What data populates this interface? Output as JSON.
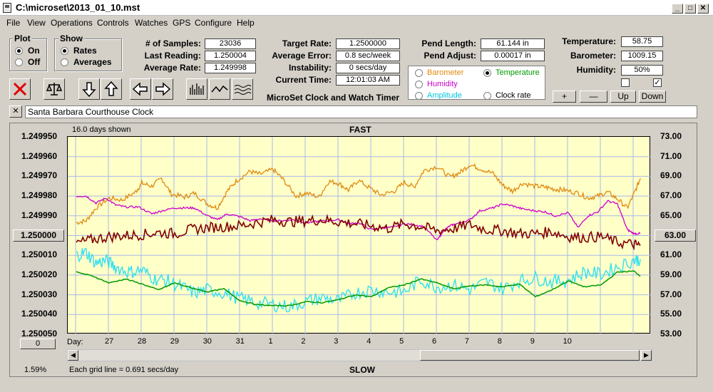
{
  "window": {
    "title": "C:\\microset\\2013_01_10.mst",
    "minimize": "_",
    "maximize": "□",
    "close": "✕"
  },
  "menu": [
    "File",
    "View",
    "Operations",
    "Controls",
    "Watches",
    "GPS",
    "Configure",
    "Help"
  ],
  "plot_group": {
    "title": "Plot",
    "options": [
      "On",
      "Off"
    ],
    "selected": "On"
  },
  "show_group": {
    "title": "Show",
    "options": [
      "Rates",
      "Averages"
    ],
    "selected": "Rates"
  },
  "stats": {
    "samples_label": "# of Samples:",
    "samples": "23036",
    "last_reading_label": "Last Reading:",
    "last_reading": "1.250004",
    "average_rate_label": "Average Rate:",
    "average_rate": "1.249998",
    "target_rate_label": "Target Rate:",
    "target_rate": "1.2500000",
    "average_error_label": "Average Error:",
    "average_error": "0.8 sec/week",
    "instability_label": "Instability:",
    "instability": "0 secs/day",
    "current_time_label": "Current Time:",
    "current_time": "12:01:03 AM",
    "app_caption": "MicroSet Clock and Watch Timer",
    "pend_length_label": "Pend Length:",
    "pend_length": "61.144 in",
    "pend_adjust_label": "Pend Adjust:",
    "pend_adjust": "0.00017 in",
    "temperature_label": "Temperature:",
    "temperature": "58.75",
    "barometer_label": "Barometer:",
    "barometer": "1009.15",
    "humidity_label": "Humidity:",
    "humidity": "50%"
  },
  "aux_select": {
    "options": [
      {
        "label": "Barometer",
        "color": "#e08a10"
      },
      {
        "label": "Temperature",
        "color": "#009900"
      },
      {
        "label": "Humidity",
        "color": "#cc00cc"
      },
      {
        "label": "Amplitude",
        "color": "#00c8e0"
      },
      {
        "label": "Clock rate",
        "color": "#000000"
      }
    ],
    "selected": "Temperature"
  },
  "aux_buttons": {
    "plus": "+",
    "minus": "—",
    "up": "Up",
    "down": "Down"
  },
  "checkboxes": [
    false,
    true
  ],
  "toolbar_icons": [
    "delete-icon",
    "balance-icon",
    "arrow-down-icon",
    "arrow-up-icon",
    "arrow-left-icon",
    "arrow-right-icon",
    "bar-graph-icon",
    "line-graph-icon",
    "wave-graph-icon"
  ],
  "clock_name": {
    "close": "✕",
    "value": "Santa Barbara Courthouse Clock"
  },
  "graph": {
    "days_shown": "16.0 days shown",
    "fast_label": "FAST",
    "slow_label": "SLOW",
    "left_center_button": "1.250000",
    "right_center_button": "63.00",
    "bottom_left_button": "0",
    "percent": "1.59%",
    "grid_note": "Each grid line = 0.691 secs/day",
    "day_label": "Day:"
  },
  "chart_data": {
    "type": "line",
    "title": "",
    "y_left_ticks": [
      "1.249950",
      "1.249960",
      "1.249970",
      "1.249980",
      "1.249990",
      "1.250000",
      "1.250010",
      "1.250020",
      "1.250030",
      "1.250040",
      "1.250050"
    ],
    "y_right_ticks": [
      "73.00",
      "71.00",
      "69.00",
      "67.00",
      "65.00",
      "63.00",
      "61.00",
      "59.00",
      "57.00",
      "55.00",
      "53.00"
    ],
    "x_ticks": [
      "27",
      "28",
      "29",
      "30",
      "31",
      "1",
      "2",
      "3",
      "4",
      "5",
      "6",
      "7",
      "8",
      "9",
      "10"
    ],
    "ylim_left": [
      1.25005,
      1.24995
    ],
    "ylim_right": [
      53,
      73
    ],
    "grid": true,
    "series": [
      {
        "name": "Barometer",
        "color": "#e08a10",
        "x": [
          0,
          0.3,
          0.6,
          1,
          1.4,
          1.8,
          2.0,
          2.3,
          2.6,
          2.9,
          3.3,
          3.6,
          4.0,
          4.3,
          4.6,
          4.9,
          5.3,
          5.6,
          6.0,
          6.3,
          6.7,
          7.0,
          7.4,
          7.7,
          8.0,
          8.3,
          8.6,
          9.0,
          9.3,
          9.7,
          10.0,
          10.3,
          10.6,
          11.0,
          11.4,
          11.7,
          12.0,
          12.3,
          12.7,
          13.0,
          13.3,
          13.6,
          14.0,
          14.3,
          14.6,
          14.9,
          15.3,
          15.6,
          15.9,
          16.2,
          16.5,
          16.8,
          17.0,
          17.2
        ],
        "y": [
          64.3,
          64.5,
          65.8,
          66.8,
          66.6,
          67.4,
          68.3,
          68.0,
          68.8,
          67.2,
          66.9,
          67.3,
          66.2,
          65.8,
          67.5,
          68.6,
          69.5,
          69.2,
          69.7,
          68.7,
          67.0,
          67.3,
          66.9,
          68.5,
          68.3,
          67.6,
          68.6,
          67.7,
          67.1,
          67.5,
          68.4,
          67.9,
          69.6,
          70.0,
          68.9,
          69.4,
          70.2,
          69.8,
          69.3,
          68.1,
          67.5,
          68.3,
          68.0,
          67.9,
          67.7,
          67.6,
          67.3,
          66.8,
          67.0,
          67.4,
          66.7,
          65.8,
          67.2,
          68.8
        ]
      },
      {
        "name": "Humidity",
        "color": "#cc00cc",
        "x": [
          0,
          0.3,
          0.6,
          0.9,
          1.2,
          1.5,
          1.9,
          2.3,
          2.6,
          3.0,
          3.3,
          3.6,
          4.0,
          4.3,
          4.6,
          5.0,
          5.3,
          5.6,
          6.0,
          6.3,
          6.6,
          7.0,
          7.3,
          7.6,
          8.0,
          8.3,
          8.6,
          9.0,
          9.3,
          9.6,
          10.0,
          10.3,
          10.6,
          11.0,
          11.2,
          11.4,
          11.6,
          12.0,
          12.3,
          12.7,
          13.0,
          13.3,
          13.6,
          14.0,
          14.3,
          14.6,
          15.0,
          15.3,
          15.6,
          15.9,
          16.2,
          16.5,
          16.8,
          17.0,
          17.2
        ],
        "y": [
          67.0,
          67.0,
          66.3,
          66.8,
          66.1,
          65.9,
          65.9,
          65.2,
          65.5,
          65.8,
          65.8,
          65.8,
          65.0,
          64.6,
          65.2,
          64.9,
          64.5,
          64.7,
          64.5,
          64.5,
          64.6,
          64.3,
          64.4,
          64.5,
          64.6,
          64.2,
          64.3,
          63.6,
          63.8,
          63.8,
          64.2,
          64.1,
          63.9,
          62.5,
          63.5,
          64.0,
          64.2,
          64.6,
          65.5,
          65.8,
          66.2,
          66.0,
          65.7,
          65.5,
          65.4,
          65.0,
          65.3,
          63.8,
          65.0,
          65.4,
          66.5,
          66.2,
          63.6,
          63.2,
          63.2
        ]
      },
      {
        "name": "Clock rate",
        "color": "#800000",
        "x": [
          0,
          0.5,
          1.0,
          1.5,
          2.0,
          2.5,
          3.0,
          3.5,
          4.0,
          4.5,
          5.0,
          5.5,
          6.0,
          6.5,
          7.0,
          7.5,
          8.0,
          8.5,
          9.0,
          9.5,
          10.0,
          10.5,
          11.0,
          11.5,
          12.0,
          12.5,
          13.0,
          13.5,
          14.0,
          14.5,
          15.0,
          15.5,
          16.0,
          16.5,
          17.0,
          17.2
        ],
        "y": [
          62.2,
          62.6,
          62.9,
          63.0,
          63.1,
          63.3,
          63.2,
          63.6,
          63.8,
          63.9,
          64.0,
          64.3,
          64.6,
          64.4,
          64.5,
          64.6,
          64.4,
          64.2,
          64.0,
          63.7,
          64.2,
          63.9,
          63.5,
          63.7,
          64.1,
          63.6,
          63.5,
          63.2,
          63.2,
          63.4,
          62.9,
          62.8,
          62.9,
          62.3,
          62.1,
          62.0
        ]
      },
      {
        "name": "Amplitude",
        "color": "#33e0f0",
        "x": [
          0,
          0.3,
          0.6,
          0.9,
          1.2,
          1.6,
          2.0,
          2.4,
          2.8,
          3.2,
          3.6,
          4.0,
          4.5,
          5.0,
          5.5,
          6.0,
          6.5,
          7.0,
          7.5,
          8.0,
          8.5,
          9.0,
          9.5,
          10.0,
          10.5,
          11.0,
          11.5,
          12.0,
          12.5,
          13.0,
          13.5,
          14.0,
          14.5,
          15.0,
          15.5,
          16.0,
          16.5,
          17.0,
          17.2
        ],
        "y": [
          61.0,
          61.3,
          60.2,
          60.5,
          59.8,
          59.3,
          59.5,
          58.6,
          58.4,
          57.8,
          57.2,
          57.5,
          57.2,
          56.6,
          56.2,
          56.0,
          55.8,
          56.3,
          56.7,
          56.4,
          57.2,
          57.5,
          57.3,
          57.3,
          58.5,
          57.8,
          58.0,
          57.5,
          58.3,
          57.6,
          58.4,
          58.7,
          58.3,
          58.5,
          59.3,
          59.1,
          59.8,
          60.5,
          60.6
        ]
      },
      {
        "name": "Temperature",
        "color": "#009900",
        "x": [
          0,
          0.5,
          1.0,
          1.5,
          2.0,
          2.5,
          3.0,
          3.5,
          4.0,
          4.5,
          5.0,
          5.5,
          6.0,
          6.5,
          7.0,
          7.5,
          8.0,
          8.5,
          9.0,
          9.5,
          10.0,
          10.5,
          11.0,
          11.5,
          12.0,
          12.5,
          13.0,
          13.5,
          14.0,
          14.5,
          15.0,
          15.5,
          16.0,
          16.5,
          17.0,
          17.2
        ],
        "y": [
          59.3,
          58.9,
          58.2,
          58.6,
          58.1,
          57.5,
          58.2,
          57.7,
          57.3,
          57.6,
          56.4,
          56.0,
          55.9,
          55.9,
          56.3,
          56.2,
          56.5,
          57.0,
          56.8,
          57.7,
          58.0,
          58.6,
          58.2,
          57.6,
          57.9,
          58.0,
          57.8,
          58.1,
          56.8,
          57.5,
          58.4,
          57.8,
          58.0,
          59.3,
          59.4,
          58.9
        ]
      }
    ]
  }
}
